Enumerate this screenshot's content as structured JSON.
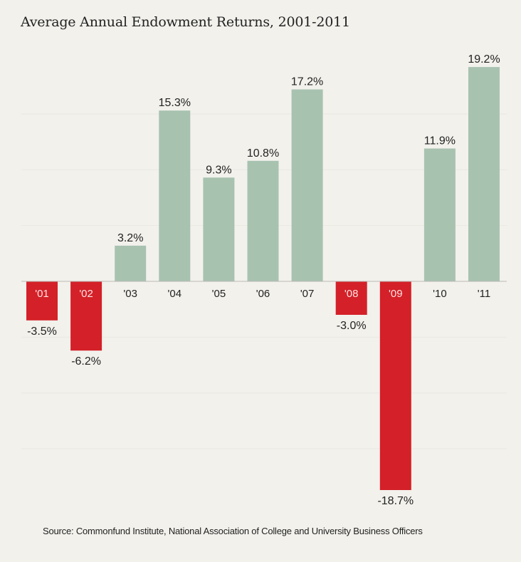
{
  "title": "Average Annual Endowment Returns, 2001-2011",
  "source": "Source: Commonfund Institute, National Association of College and University Business Officers",
  "colors": {
    "positive": "#a8c2b0",
    "negative": "#d42028",
    "background": "#f2f1ec",
    "gridline": "#e9e8e2",
    "baseline": "#b9b9b4",
    "text": "#222222",
    "label_on_negative": "#fbe3e3"
  },
  "chart_data": {
    "type": "bar",
    "title": "Average Annual Endowment Returns, 2001-2011",
    "xlabel": "",
    "ylabel": "",
    "categories": [
      "'01",
      "'02",
      "'03",
      "'04",
      "'05",
      "'06",
      "'07",
      "'08",
      "'09",
      "'10",
      "'11"
    ],
    "values": [
      -3.5,
      -6.2,
      3.2,
      15.3,
      9.3,
      10.8,
      17.2,
      -3.0,
      -18.7,
      11.9,
      19.2
    ],
    "data_labels": [
      "-3.5%",
      "-6.2%",
      "3.2%",
      "15.3%",
      "9.3%",
      "10.8%",
      "17.2%",
      "-3.0%",
      "-18.7%",
      "11.9%",
      "19.2%"
    ],
    "ylim": [
      -19,
      19.5
    ],
    "gridlines": [
      -15,
      -10,
      -5,
      5,
      10,
      15
    ],
    "grid": true,
    "legend": "none",
    "source": "Source: Commonfund Institute, National Association of College and University Business Officers"
  }
}
